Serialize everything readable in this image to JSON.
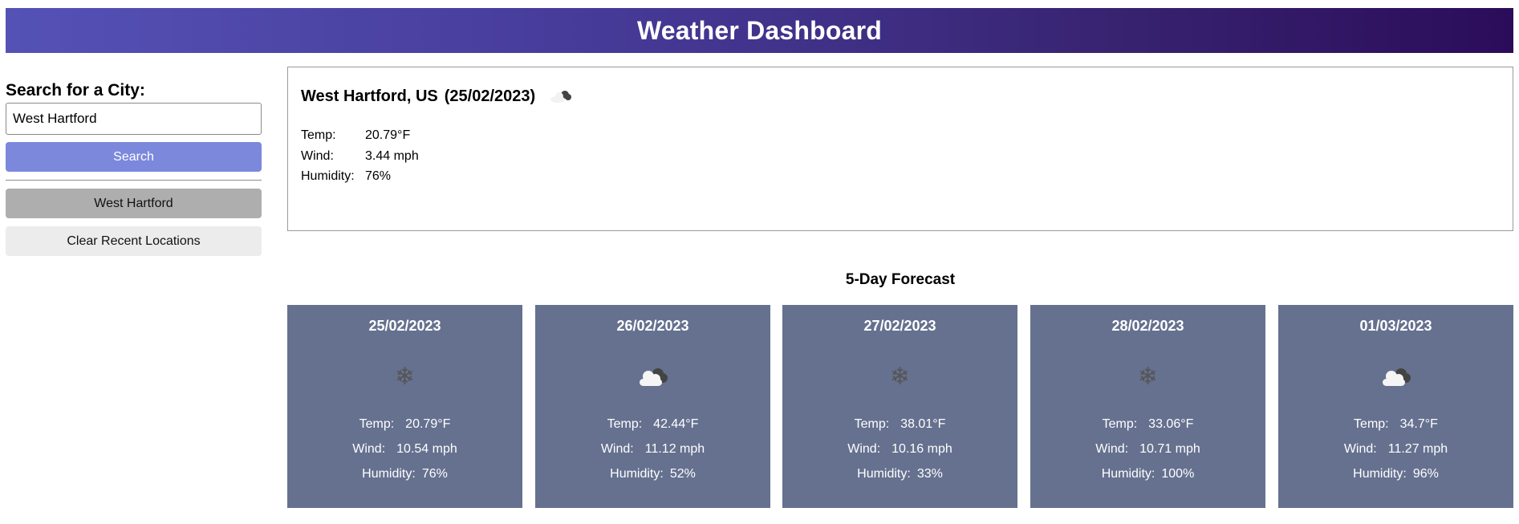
{
  "header": {
    "title": "Weather Dashboard"
  },
  "sidebar": {
    "search_label": "Search for a City:",
    "search_value": "West Hartford",
    "search_button": "Search",
    "recent": [
      "West Hartford"
    ],
    "clear_button": "Clear Recent Locations"
  },
  "current": {
    "city": "West Hartford, US",
    "date": "(25/02/2023)",
    "icon": "cloud-icon",
    "temp_label": "Temp:",
    "temp": "20.79°F",
    "wind_label": "Wind:",
    "wind": "3.44 mph",
    "humidity_label": "Humidity:",
    "humidity": "76%"
  },
  "forecast": {
    "title": "5-Day Forecast",
    "temp_label": "Temp:",
    "wind_label": "Wind:",
    "humidity_label": "Humidity:",
    "days": [
      {
        "date": "25/02/2023",
        "icon": "snowflake-icon",
        "temp": "20.79°F",
        "wind": "10.54 mph",
        "humidity": "76%"
      },
      {
        "date": "26/02/2023",
        "icon": "cloud-icon",
        "temp": "42.44°F",
        "wind": "11.12 mph",
        "humidity": "52%"
      },
      {
        "date": "27/02/2023",
        "icon": "snowflake-icon",
        "temp": "38.01°F",
        "wind": "10.16 mph",
        "humidity": "33%"
      },
      {
        "date": "28/02/2023",
        "icon": "snowflake-icon",
        "temp": "33.06°F",
        "wind": "10.71 mph",
        "humidity": "100%"
      },
      {
        "date": "01/03/2023",
        "icon": "cloud-icon",
        "temp": "34.7°F",
        "wind": "11.27 mph",
        "humidity": "96%"
      }
    ]
  },
  "colors": {
    "header_start": "#5552b6",
    "header_end": "#2b0c5a",
    "search_button": "#7b88dc",
    "card": "#65718f"
  }
}
